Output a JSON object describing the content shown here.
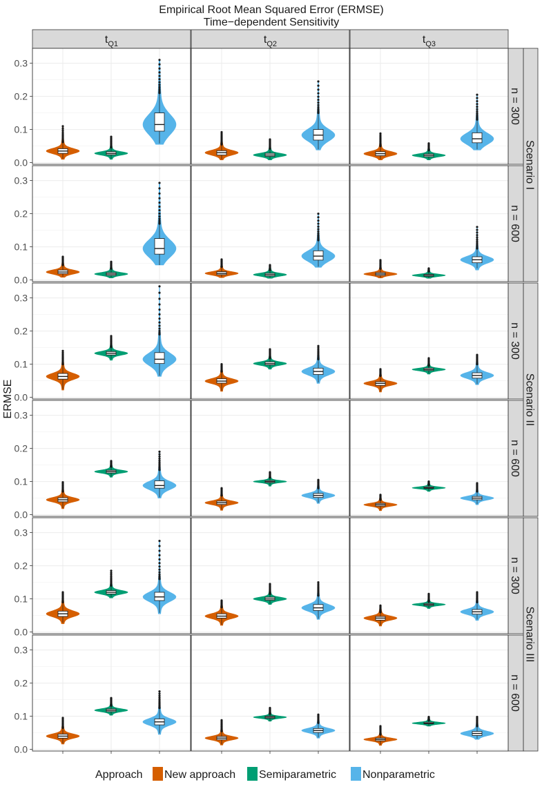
{
  "chart_data": {
    "type": "violin",
    "title": "Empirical Root Mean Squared Error (ERMSE)",
    "subtitle": "Time−dependent Sensitivity",
    "ylabel": "ERMSE",
    "xlabel": "",
    "ylim": [
      -0.005,
      0.345
    ],
    "yticks": [
      0.0,
      0.1,
      0.2,
      0.3
    ],
    "ytick_labels": [
      "0.0",
      "0.1",
      "0.2",
      "0.3"
    ],
    "grid": true,
    "legend": {
      "title": "Approach",
      "position": "bottom",
      "entries": [
        "New approach",
        "Semiparametric",
        "Nonparametric"
      ]
    },
    "series_colors": {
      "New approach": "#D55E00",
      "Semiparametric": "#009E73",
      "Nonparametric": "#56B4E9"
    },
    "columns": [
      {
        "base": "t",
        "sub": "Q1"
      },
      {
        "base": "t",
        "sub": "Q2"
      },
      {
        "base": "t",
        "sub": "Q3"
      }
    ],
    "scenarios": [
      {
        "label": "Scenario I",
        "rows": [
          "n = 300",
          "n = 600"
        ]
      },
      {
        "label": "Scenario II",
        "rows": [
          "n = 300",
          "n = 600"
        ]
      },
      {
        "label": "Scenario III",
        "rows": [
          "n = 300",
          "n = 600"
        ]
      }
    ],
    "panels": [
      [
        [
          {
            "series": "New approach",
            "q1": 0.028,
            "median": 0.035,
            "q3": 0.042,
            "lower": 0.012,
            "upper": 0.062,
            "min": 0.01,
            "max": 0.11
          },
          {
            "series": "Semiparametric",
            "q1": 0.024,
            "median": 0.028,
            "q3": 0.033,
            "lower": 0.012,
            "upper": 0.046,
            "min": 0.01,
            "max": 0.078
          },
          {
            "series": "Nonparametric",
            "q1": 0.095,
            "median": 0.115,
            "q3": 0.15,
            "lower": 0.058,
            "upper": 0.21,
            "min": 0.055,
            "max": 0.31
          }
        ],
        [
          {
            "series": "New approach",
            "q1": 0.023,
            "median": 0.03,
            "q3": 0.036,
            "lower": 0.01,
            "upper": 0.055,
            "min": 0.008,
            "max": 0.092
          },
          {
            "series": "Semiparametric",
            "q1": 0.019,
            "median": 0.023,
            "q3": 0.028,
            "lower": 0.01,
            "upper": 0.042,
            "min": 0.008,
            "max": 0.07
          },
          {
            "series": "Nonparametric",
            "q1": 0.068,
            "median": 0.083,
            "q3": 0.1,
            "lower": 0.04,
            "upper": 0.15,
            "min": 0.038,
            "max": 0.245
          }
        ],
        [
          {
            "series": "New approach",
            "q1": 0.021,
            "median": 0.027,
            "q3": 0.033,
            "lower": 0.01,
            "upper": 0.05,
            "min": 0.008,
            "max": 0.088
          },
          {
            "series": "Semiparametric",
            "q1": 0.018,
            "median": 0.022,
            "q3": 0.026,
            "lower": 0.01,
            "upper": 0.038,
            "min": 0.008,
            "max": 0.058
          },
          {
            "series": "Nonparametric",
            "q1": 0.06,
            "median": 0.072,
            "q3": 0.09,
            "lower": 0.04,
            "upper": 0.13,
            "min": 0.038,
            "max": 0.205
          }
        ]
      ],
      [
        [
          {
            "series": "New approach",
            "q1": 0.019,
            "median": 0.024,
            "q3": 0.03,
            "lower": 0.01,
            "upper": 0.045,
            "min": 0.008,
            "max": 0.07
          },
          {
            "series": "Semiparametric",
            "q1": 0.014,
            "median": 0.018,
            "q3": 0.022,
            "lower": 0.008,
            "upper": 0.034,
            "min": 0.006,
            "max": 0.055
          },
          {
            "series": "Nonparametric",
            "q1": 0.078,
            "median": 0.095,
            "q3": 0.125,
            "lower": 0.045,
            "upper": 0.17,
            "min": 0.045,
            "max": 0.293
          }
        ],
        [
          {
            "series": "New approach",
            "q1": 0.016,
            "median": 0.02,
            "q3": 0.025,
            "lower": 0.008,
            "upper": 0.04,
            "min": 0.007,
            "max": 0.062
          },
          {
            "series": "Semiparametric",
            "q1": 0.012,
            "median": 0.016,
            "q3": 0.02,
            "lower": 0.007,
            "upper": 0.03,
            "min": 0.005,
            "max": 0.045
          },
          {
            "series": "Nonparametric",
            "q1": 0.06,
            "median": 0.072,
            "q3": 0.088,
            "lower": 0.04,
            "upper": 0.12,
            "min": 0.038,
            "max": 0.2
          }
        ],
        [
          {
            "series": "New approach",
            "q1": 0.014,
            "median": 0.018,
            "q3": 0.022,
            "lower": 0.007,
            "upper": 0.034,
            "min": 0.006,
            "max": 0.06
          },
          {
            "series": "Semiparametric",
            "q1": 0.011,
            "median": 0.014,
            "q3": 0.017,
            "lower": 0.006,
            "upper": 0.026,
            "min": 0.005,
            "max": 0.035
          },
          {
            "series": "Nonparametric",
            "q1": 0.052,
            "median": 0.061,
            "q3": 0.07,
            "lower": 0.035,
            "upper": 0.095,
            "min": 0.03,
            "max": 0.16
          }
        ]
      ],
      [
        [
          {
            "series": "New approach",
            "q1": 0.055,
            "median": 0.063,
            "q3": 0.072,
            "lower": 0.025,
            "upper": 0.1,
            "min": 0.022,
            "max": 0.14
          },
          {
            "series": "Semiparametric",
            "q1": 0.128,
            "median": 0.133,
            "q3": 0.138,
            "lower": 0.116,
            "upper": 0.152,
            "min": 0.112,
            "max": 0.185
          },
          {
            "series": "Nonparametric",
            "q1": 0.102,
            "median": 0.115,
            "q3": 0.135,
            "lower": 0.065,
            "upper": 0.19,
            "min": 0.063,
            "max": 0.335
          }
        ],
        [
          {
            "series": "New approach",
            "q1": 0.043,
            "median": 0.049,
            "q3": 0.056,
            "lower": 0.02,
            "upper": 0.078,
            "min": 0.018,
            "max": 0.1
          },
          {
            "series": "Semiparametric",
            "q1": 0.098,
            "median": 0.102,
            "q3": 0.107,
            "lower": 0.088,
            "upper": 0.118,
            "min": 0.085,
            "max": 0.145
          },
          {
            "series": "Nonparametric",
            "q1": 0.069,
            "median": 0.078,
            "q3": 0.088,
            "lower": 0.045,
            "upper": 0.115,
            "min": 0.042,
            "max": 0.155
          }
        ],
        [
          {
            "series": "New approach",
            "q1": 0.036,
            "median": 0.042,
            "q3": 0.047,
            "lower": 0.018,
            "upper": 0.065,
            "min": 0.016,
            "max": 0.085
          },
          {
            "series": "Semiparametric",
            "q1": 0.081,
            "median": 0.084,
            "q3": 0.088,
            "lower": 0.072,
            "upper": 0.095,
            "min": 0.07,
            "max": 0.118
          },
          {
            "series": "Nonparametric",
            "q1": 0.058,
            "median": 0.066,
            "q3": 0.074,
            "lower": 0.04,
            "upper": 0.1,
            "min": 0.038,
            "max": 0.128
          }
        ]
      ],
      [
        [
          {
            "series": "New approach",
            "q1": 0.039,
            "median": 0.045,
            "q3": 0.051,
            "lower": 0.02,
            "upper": 0.07,
            "min": 0.018,
            "max": 0.098
          },
          {
            "series": "Semiparametric",
            "q1": 0.126,
            "median": 0.13,
            "q3": 0.134,
            "lower": 0.115,
            "upper": 0.145,
            "min": 0.113,
            "max": 0.162
          },
          {
            "series": "Nonparametric",
            "q1": 0.08,
            "median": 0.088,
            "q3": 0.102,
            "lower": 0.052,
            "upper": 0.135,
            "min": 0.05,
            "max": 0.19
          }
        ],
        [
          {
            "series": "New approach",
            "q1": 0.031,
            "median": 0.036,
            "q3": 0.041,
            "lower": 0.015,
            "upper": 0.058,
            "min": 0.013,
            "max": 0.08
          },
          {
            "series": "Semiparametric",
            "q1": 0.097,
            "median": 0.1,
            "q3": 0.103,
            "lower": 0.088,
            "upper": 0.112,
            "min": 0.086,
            "max": 0.128
          },
          {
            "series": "Nonparametric",
            "q1": 0.052,
            "median": 0.058,
            "q3": 0.064,
            "lower": 0.036,
            "upper": 0.08,
            "min": 0.034,
            "max": 0.105
          }
        ],
        [
          {
            "series": "New approach",
            "q1": 0.026,
            "median": 0.03,
            "q3": 0.034,
            "lower": 0.014,
            "upper": 0.045,
            "min": 0.012,
            "max": 0.06
          },
          {
            "series": "Semiparametric",
            "q1": 0.079,
            "median": 0.081,
            "q3": 0.084,
            "lower": 0.072,
            "upper": 0.09,
            "min": 0.07,
            "max": 0.1
          },
          {
            "series": "Nonparametric",
            "q1": 0.045,
            "median": 0.05,
            "q3": 0.055,
            "lower": 0.032,
            "upper": 0.07,
            "min": 0.03,
            "max": 0.095
          }
        ]
      ],
      [
        [
          {
            "series": "New approach",
            "q1": 0.047,
            "median": 0.055,
            "q3": 0.063,
            "lower": 0.028,
            "upper": 0.09,
            "min": 0.025,
            "max": 0.12
          },
          {
            "series": "Semiparametric",
            "q1": 0.115,
            "median": 0.12,
            "q3": 0.125,
            "lower": 0.105,
            "upper": 0.14,
            "min": 0.103,
            "max": 0.185
          },
          {
            "series": "Nonparametric",
            "q1": 0.095,
            "median": 0.106,
            "q3": 0.12,
            "lower": 0.058,
            "upper": 0.16,
            "min": 0.055,
            "max": 0.275
          }
        ],
        [
          {
            "series": "New approach",
            "q1": 0.042,
            "median": 0.048,
            "q3": 0.055,
            "lower": 0.022,
            "upper": 0.075,
            "min": 0.02,
            "max": 0.095
          },
          {
            "series": "Semiparametric",
            "q1": 0.096,
            "median": 0.1,
            "q3": 0.105,
            "lower": 0.085,
            "upper": 0.115,
            "min": 0.083,
            "max": 0.145
          },
          {
            "series": "Nonparametric",
            "q1": 0.065,
            "median": 0.073,
            "q3": 0.083,
            "lower": 0.04,
            "upper": 0.11,
            "min": 0.038,
            "max": 0.15
          }
        ],
        [
          {
            "series": "New approach",
            "q1": 0.036,
            "median": 0.042,
            "q3": 0.047,
            "lower": 0.02,
            "upper": 0.06,
            "min": 0.018,
            "max": 0.08
          },
          {
            "series": "Semiparametric",
            "q1": 0.08,
            "median": 0.083,
            "q3": 0.086,
            "lower": 0.073,
            "upper": 0.092,
            "min": 0.071,
            "max": 0.115
          },
          {
            "series": "Nonparametric",
            "q1": 0.054,
            "median": 0.061,
            "q3": 0.068,
            "lower": 0.038,
            "upper": 0.09,
            "min": 0.035,
            "max": 0.12
          }
        ]
      ],
      [
        [
          {
            "series": "New approach",
            "q1": 0.034,
            "median": 0.04,
            "q3": 0.046,
            "lower": 0.018,
            "upper": 0.065,
            "min": 0.016,
            "max": 0.095
          },
          {
            "series": "Semiparametric",
            "q1": 0.114,
            "median": 0.118,
            "q3": 0.122,
            "lower": 0.105,
            "upper": 0.132,
            "min": 0.103,
            "max": 0.155
          },
          {
            "series": "Nonparametric",
            "q1": 0.074,
            "median": 0.083,
            "q3": 0.092,
            "lower": 0.048,
            "upper": 0.125,
            "min": 0.045,
            "max": 0.175
          }
        ],
        [
          {
            "series": "New approach",
            "q1": 0.029,
            "median": 0.034,
            "q3": 0.039,
            "lower": 0.015,
            "upper": 0.055,
            "min": 0.013,
            "max": 0.088
          },
          {
            "series": "Semiparametric",
            "q1": 0.094,
            "median": 0.097,
            "q3": 0.1,
            "lower": 0.086,
            "upper": 0.107,
            "min": 0.085,
            "max": 0.125
          },
          {
            "series": "Nonparametric",
            "q1": 0.051,
            "median": 0.057,
            "q3": 0.063,
            "lower": 0.036,
            "upper": 0.08,
            "min": 0.034,
            "max": 0.105
          }
        ],
        [
          {
            "series": "New approach",
            "q1": 0.026,
            "median": 0.03,
            "q3": 0.034,
            "lower": 0.014,
            "upper": 0.045,
            "min": 0.012,
            "max": 0.07
          },
          {
            "series": "Semiparametric",
            "q1": 0.077,
            "median": 0.079,
            "q3": 0.082,
            "lower": 0.071,
            "upper": 0.088,
            "min": 0.07,
            "max": 0.098
          },
          {
            "series": "Nonparametric",
            "q1": 0.042,
            "median": 0.048,
            "q3": 0.054,
            "lower": 0.032,
            "upper": 0.07,
            "min": 0.03,
            "max": 0.098
          }
        ]
      ]
    ]
  }
}
